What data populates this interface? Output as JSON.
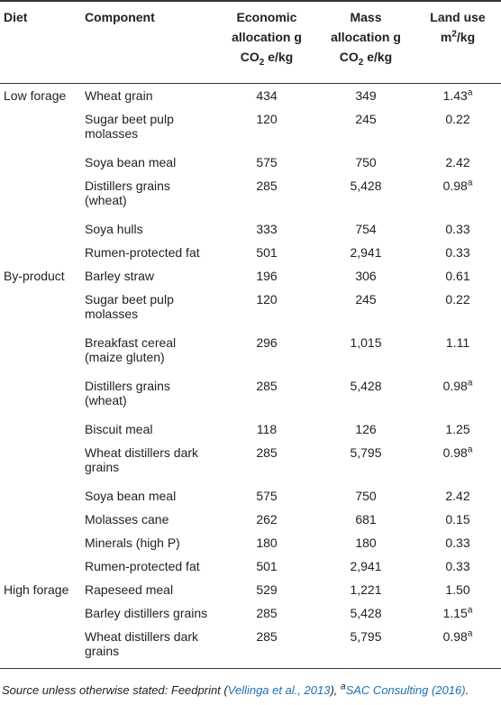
{
  "table": {
    "header": [
      {
        "text": "Diet"
      },
      {
        "text": "Component"
      },
      {
        "text": "Economic allocation g CO",
        "sub": "2",
        "after": " e/kg"
      },
      {
        "text": "Mass allocation g CO",
        "sub": "2",
        "after": " e/kg"
      },
      {
        "text": "Land use m",
        "sup": "2",
        "after": "/kg"
      }
    ],
    "groups": [
      {
        "diet": "Low forage",
        "rows": [
          {
            "component": "Wheat grain",
            "economic": "434",
            "mass": "349",
            "land_use": "1.43",
            "note": "a"
          },
          {
            "component": "Sugar beet pulp molasses",
            "economic": "120",
            "mass": "245",
            "land_use": "0.22"
          },
          {
            "component": "Soya bean meal",
            "economic": "575",
            "mass": "750",
            "land_use": "2.42"
          },
          {
            "component": "Distillers grains (wheat)",
            "economic": "285",
            "mass": "5,428",
            "land_use": "0.98",
            "note": "a"
          },
          {
            "component": "Soya hulls",
            "economic": "333",
            "mass": "754",
            "land_use": "0.33"
          },
          {
            "component": "Rumen-protected fat",
            "economic": "501",
            "mass": "2,941",
            "land_use": "0.33"
          }
        ]
      },
      {
        "diet": "By-product",
        "rows": [
          {
            "component": "Barley straw",
            "economic": "196",
            "mass": "306",
            "land_use": "0.61"
          },
          {
            "component": "Sugar beet pulp molasses",
            "economic": "120",
            "mass": "245",
            "land_use": "0.22"
          },
          {
            "component": "Breakfast cereal (maize gluten)",
            "economic": "296",
            "mass": "1,015",
            "land_use": "1.11"
          },
          {
            "component": "Distillers grains (wheat)",
            "economic": "285",
            "mass": "5,428",
            "land_use": "0.98",
            "note": "a"
          },
          {
            "component": "Biscuit meal",
            "economic": "118",
            "mass": "126",
            "land_use": "1.25"
          },
          {
            "component": "Wheat distillers dark grains",
            "economic": "285",
            "mass": "5,795",
            "land_use": "0.98",
            "note": "a"
          },
          {
            "component": "Soya bean meal",
            "economic": "575",
            "mass": "750",
            "land_use": "2.42"
          },
          {
            "component": "Molasses cane",
            "economic": "262",
            "mass": "681",
            "land_use": "0.15"
          },
          {
            "component": "Minerals (high P)",
            "economic": "180",
            "mass": "180",
            "land_use": "0.33"
          },
          {
            "component": "Rumen-protected fat",
            "economic": "501",
            "mass": "2,941",
            "land_use": "0.33"
          }
        ]
      },
      {
        "diet": "High forage",
        "rows": [
          {
            "component": "Rapeseed meal",
            "economic": "529",
            "mass": "1,221",
            "land_use": "1.50"
          },
          {
            "component": "Barley distillers grains",
            "economic": "285",
            "mass": "5,428",
            "land_use": "1.15",
            "note": "a"
          },
          {
            "component": "Wheat distillers dark grains",
            "economic": "285",
            "mass": "5,795",
            "land_use": "0.98",
            "note": "a"
          }
        ]
      }
    ],
    "footnote": {
      "prefix": "Source unless otherwise stated: Feedprint (",
      "ref1": "Vellinga et al., 2013",
      "middle": "), ",
      "mark": "a",
      "ref2": "SAC Consulting (2016)",
      "end": "."
    }
  }
}
